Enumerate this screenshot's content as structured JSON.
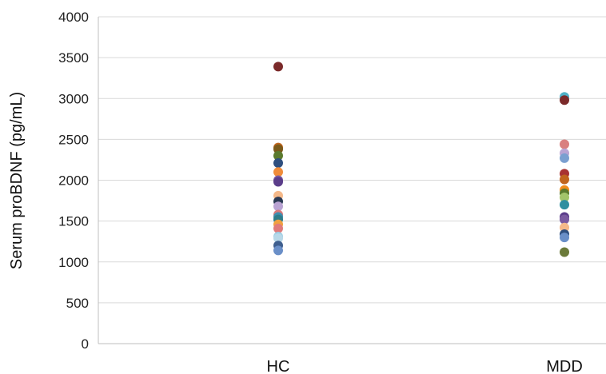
{
  "chart_data": {
    "type": "scatter",
    "title": "",
    "xlabel": "",
    "ylabel": "Serum proBDNF (pg/mL)",
    "ylim": [
      0,
      4000
    ],
    "yticks": [
      0,
      500,
      1000,
      1500,
      2000,
      2500,
      3000,
      3500,
      4000
    ],
    "grid": true,
    "legend": "none",
    "categories": [
      "HC",
      "MDD"
    ],
    "series": [
      {
        "category": "HC",
        "points": [
          {
            "y": 3390,
            "color": "#7b2a2a"
          },
          {
            "y": 2400,
            "color": "#c0651e"
          },
          {
            "y": 2380,
            "color": "#7a5a1a"
          },
          {
            "y": 2300,
            "color": "#5b7a2e"
          },
          {
            "y": 2210,
            "color": "#2f4f7f"
          },
          {
            "y": 2100,
            "color": "#f08c3a"
          },
          {
            "y": 2000,
            "color": "#7a5aa0"
          },
          {
            "y": 1980,
            "color": "#5b3d8a"
          },
          {
            "y": 1810,
            "color": "#f5b98a"
          },
          {
            "y": 1740,
            "color": "#2b3a55"
          },
          {
            "y": 1680,
            "color": "#b9a3d3"
          },
          {
            "y": 1580,
            "color": "#d97a7a"
          },
          {
            "y": 1550,
            "color": "#3d8fb0"
          },
          {
            "y": 1520,
            "color": "#2e7d8a"
          },
          {
            "y": 1460,
            "color": "#f0a040"
          },
          {
            "y": 1410,
            "color": "#e07a7a"
          },
          {
            "y": 1310,
            "color": "#9ccde3"
          },
          {
            "y": 1290,
            "color": "#b8d8e8"
          },
          {
            "y": 1200,
            "color": "#3f5f8f"
          },
          {
            "y": 1140,
            "color": "#6a8fc8"
          }
        ]
      },
      {
        "category": "MDD",
        "points": [
          {
            "y": 3020,
            "color": "#4fb0c6"
          },
          {
            "y": 2980,
            "color": "#7b2a2a"
          },
          {
            "y": 2440,
            "color": "#d98080"
          },
          {
            "y": 2330,
            "color": "#b9a3d3"
          },
          {
            "y": 2270,
            "color": "#7a9fd0"
          },
          {
            "y": 2080,
            "color": "#a83232"
          },
          {
            "y": 2010,
            "color": "#c0651e"
          },
          {
            "y": 1880,
            "color": "#f08c1a"
          },
          {
            "y": 1840,
            "color": "#5b7a2e"
          },
          {
            "y": 1790,
            "color": "#a3c46a"
          },
          {
            "y": 1700,
            "color": "#2e8fa0"
          },
          {
            "y": 1550,
            "color": "#5b3d8a"
          },
          {
            "y": 1520,
            "color": "#7a5aa0"
          },
          {
            "y": 1420,
            "color": "#f5b98a"
          },
          {
            "y": 1340,
            "color": "#2f4f7f"
          },
          {
            "y": 1300,
            "color": "#6a8fc8"
          },
          {
            "y": 1120,
            "color": "#6b7a3a"
          }
        ]
      }
    ]
  }
}
